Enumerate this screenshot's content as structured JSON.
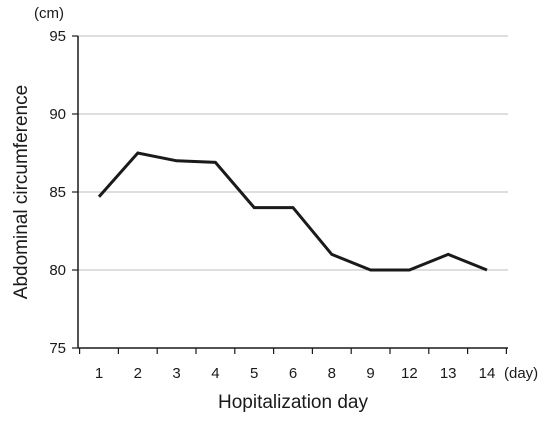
{
  "chart_data": {
    "type": "line",
    "categories": [
      "1",
      "2",
      "3",
      "4",
      "5",
      "6",
      "8",
      "9",
      "12",
      "13",
      "14"
    ],
    "series": [
      {
        "values": [
          84.7,
          87.5,
          87.0,
          86.9,
          84.0,
          84.0,
          81.0,
          80.0,
          80.0,
          81.0,
          80.0
        ]
      }
    ],
    "xlabel": "Hopitalization day",
    "ylabel": "Abdominal circumference",
    "x_unit": "(day)",
    "y_unit": "(cm)",
    "ylim": [
      75,
      95
    ],
    "yticks": [
      "75",
      "80",
      "85",
      "90",
      "95"
    ],
    "grid": "horizontal",
    "line_color": "#1a1a1a"
  }
}
